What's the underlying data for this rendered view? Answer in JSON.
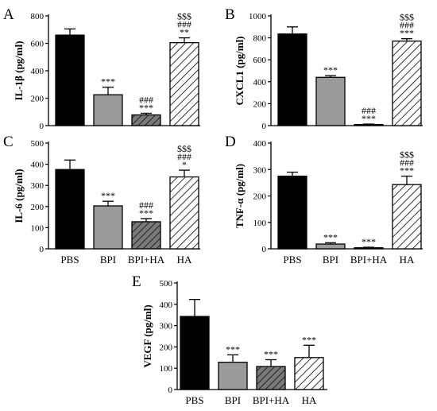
{
  "figure": {
    "categories": [
      "PBS",
      "BPI",
      "BPI+HA",
      "HA"
    ],
    "series_colors": {
      "PBS": "#000000",
      "BPI": "#9b9b9b",
      "BPI+HA": "#7a7a7a",
      "HA": "#ffffff"
    },
    "series_patterns": {
      "PBS": "solid",
      "BPI": "solid",
      "BPI+HA": "hatched-dark",
      "HA": "hatched-white"
    }
  },
  "chart_data": [
    {
      "type": "bar",
      "letter": "A",
      "ylabel": "IL-1β (pg/ml)",
      "categories": [
        "PBS",
        "BPI",
        "BPI+HA",
        "HA"
      ],
      "values": [
        660,
        225,
        78,
        605
      ],
      "errors": [
        45,
        55,
        12,
        35
      ],
      "ylim": [
        0,
        800
      ],
      "yticks": [
        0,
        200,
        400,
        600,
        800
      ],
      "show_xlabels": false,
      "annotations": [
        [],
        [
          "***"
        ],
        [
          "###",
          "***"
        ],
        [
          "$$$",
          "###",
          "**"
        ]
      ]
    },
    {
      "type": "bar",
      "letter": "B",
      "ylabel": "CXCL1 (pg/ml)",
      "categories": [
        "PBS",
        "BPI",
        "BPI+HA",
        "HA"
      ],
      "values": [
        835,
        440,
        10,
        770
      ],
      "errors": [
        65,
        15,
        4,
        22
      ],
      "ylim": [
        0,
        1000
      ],
      "yticks": [
        0,
        200,
        400,
        600,
        800,
        1000
      ],
      "show_xlabels": false,
      "annotations": [
        [],
        [
          "***"
        ],
        [
          "###",
          "***"
        ],
        [
          "$$$",
          "###",
          "***"
        ]
      ]
    },
    {
      "type": "bar",
      "letter": "C",
      "ylabel": "IL-6 (pg/ml)",
      "categories": [
        "PBS",
        "BPI",
        "BPI+HA",
        "HA"
      ],
      "values": [
        375,
        203,
        128,
        340
      ],
      "errors": [
        45,
        22,
        15,
        32
      ],
      "ylim": [
        0,
        500
      ],
      "yticks": [
        0,
        100,
        200,
        300,
        400,
        500
      ],
      "show_xlabels": true,
      "annotations": [
        [],
        [
          "***"
        ],
        [
          "###",
          "***"
        ],
        [
          "$$$",
          "###",
          "*"
        ]
      ]
    },
    {
      "type": "bar",
      "letter": "D",
      "ylabel": "TNF-α (pg/ml)",
      "categories": [
        "PBS",
        "BPI",
        "BPI+HA",
        "HA"
      ],
      "values": [
        275,
        18,
        4,
        243
      ],
      "errors": [
        15,
        5,
        2,
        32
      ],
      "ylim": [
        0,
        400
      ],
      "yticks": [
        0,
        100,
        200,
        300,
        400
      ],
      "show_xlabels": true,
      "annotations": [
        [],
        [
          "***"
        ],
        [
          "***"
        ],
        [
          "$$$",
          "###",
          "***"
        ]
      ]
    },
    {
      "type": "bar",
      "letter": "E",
      "ylabel": "VEGF (pg/ml)",
      "categories": [
        "PBS",
        "BPI",
        "BPI+HA",
        "HA"
      ],
      "values": [
        343,
        128,
        108,
        150
      ],
      "errors": [
        80,
        35,
        32,
        58
      ],
      "ylim": [
        0,
        500
      ],
      "yticks": [
        0,
        100,
        200,
        300,
        400,
        500
      ],
      "show_xlabels": true,
      "annotations": [
        [],
        [
          "***"
        ],
        [
          "***"
        ],
        [
          "***"
        ]
      ]
    }
  ]
}
